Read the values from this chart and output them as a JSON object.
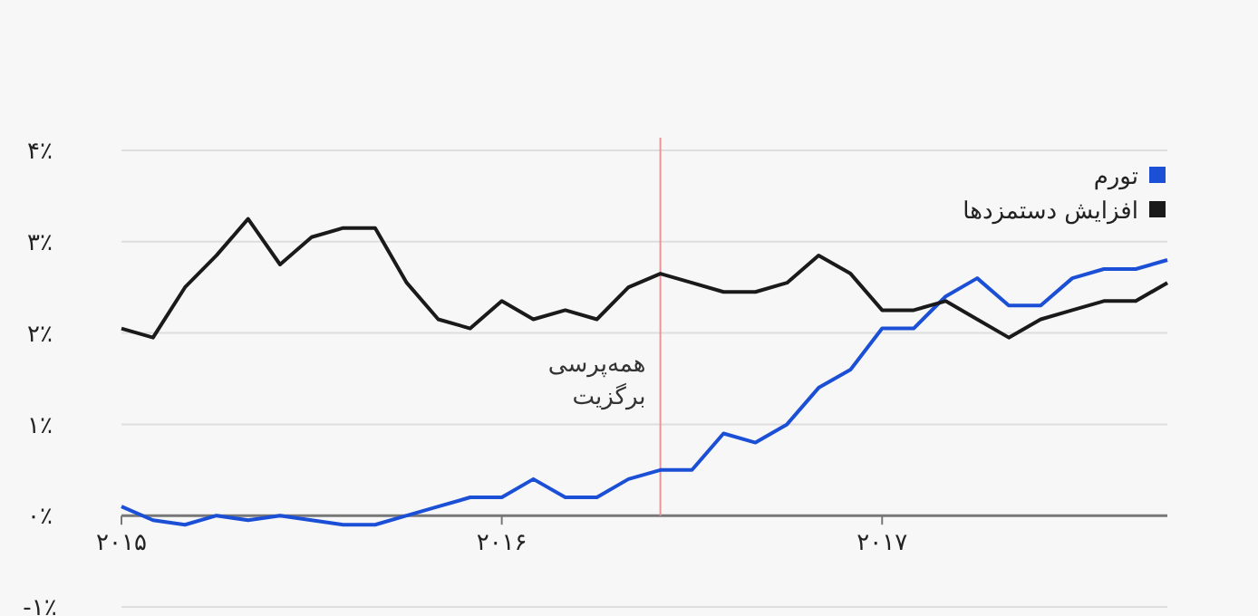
{
  "chart_data": {
    "type": "line",
    "x": [
      2015.0,
      2015.083,
      2015.167,
      2015.25,
      2015.333,
      2015.417,
      2015.5,
      2015.583,
      2015.667,
      2015.75,
      2015.833,
      2015.917,
      2016.0,
      2016.083,
      2016.167,
      2016.25,
      2016.333,
      2016.417,
      2016.5,
      2016.583,
      2016.667,
      2016.75,
      2016.833,
      2016.917,
      2017.0,
      2017.083,
      2017.167,
      2017.25,
      2017.333,
      2017.417,
      2017.5,
      2017.583,
      2017.667,
      2017.75
    ],
    "series": [
      {
        "name": "تورم",
        "color": "#1a4fd6",
        "values": [
          0.1,
          -0.05,
          -0.1,
          0.0,
          -0.05,
          0.0,
          -0.05,
          -0.1,
          -0.1,
          0.0,
          0.1,
          0.2,
          0.2,
          0.4,
          0.2,
          0.2,
          0.4,
          0.5,
          0.5,
          0.9,
          0.8,
          1.0,
          1.4,
          1.6,
          2.05,
          2.05,
          2.4,
          2.6,
          2.3,
          2.3,
          2.6,
          2.7,
          2.7,
          2.8
        ]
      },
      {
        "name": "افزایش دستمزدها",
        "color": "#1a1a1a",
        "values": [
          2.05,
          1.95,
          2.5,
          2.85,
          3.25,
          2.75,
          3.05,
          3.15,
          3.15,
          2.55,
          2.15,
          2.05,
          2.35,
          2.15,
          2.25,
          2.15,
          2.5,
          2.65,
          2.55,
          2.45,
          2.45,
          2.55,
          2.85,
          2.65,
          2.25,
          2.25,
          2.35,
          2.15,
          1.95,
          2.15,
          2.25,
          2.35,
          2.35,
          2.55
        ]
      }
    ],
    "xlim": [
      2015.0,
      2017.75
    ],
    "xticks": [
      {
        "value": 2015,
        "label": "۲۰۱۵"
      },
      {
        "value": 2016,
        "label": "۲۰۱۶"
      },
      {
        "value": 2017,
        "label": "۲۰۱۷"
      }
    ],
    "ylim": [
      -1,
      4
    ],
    "yticks": [
      {
        "value": -1,
        "label": "-۱٪"
      },
      {
        "value": 0,
        "label": "۰٪"
      },
      {
        "value": 1,
        "label": "۱٪"
      },
      {
        "value": 2,
        "label": "۲٪"
      },
      {
        "value": 3,
        "label": "۳٪"
      },
      {
        "value": 4,
        "label": "۴٪"
      }
    ],
    "grid": "y",
    "legend": "top right",
    "line_style": "solid",
    "marker": "none",
    "ref_lines": [
      {
        "axis": "x",
        "value": 2016.417,
        "label": "همه‌پرسی\nبرگزیت",
        "color": "#e8959c"
      }
    ]
  }
}
